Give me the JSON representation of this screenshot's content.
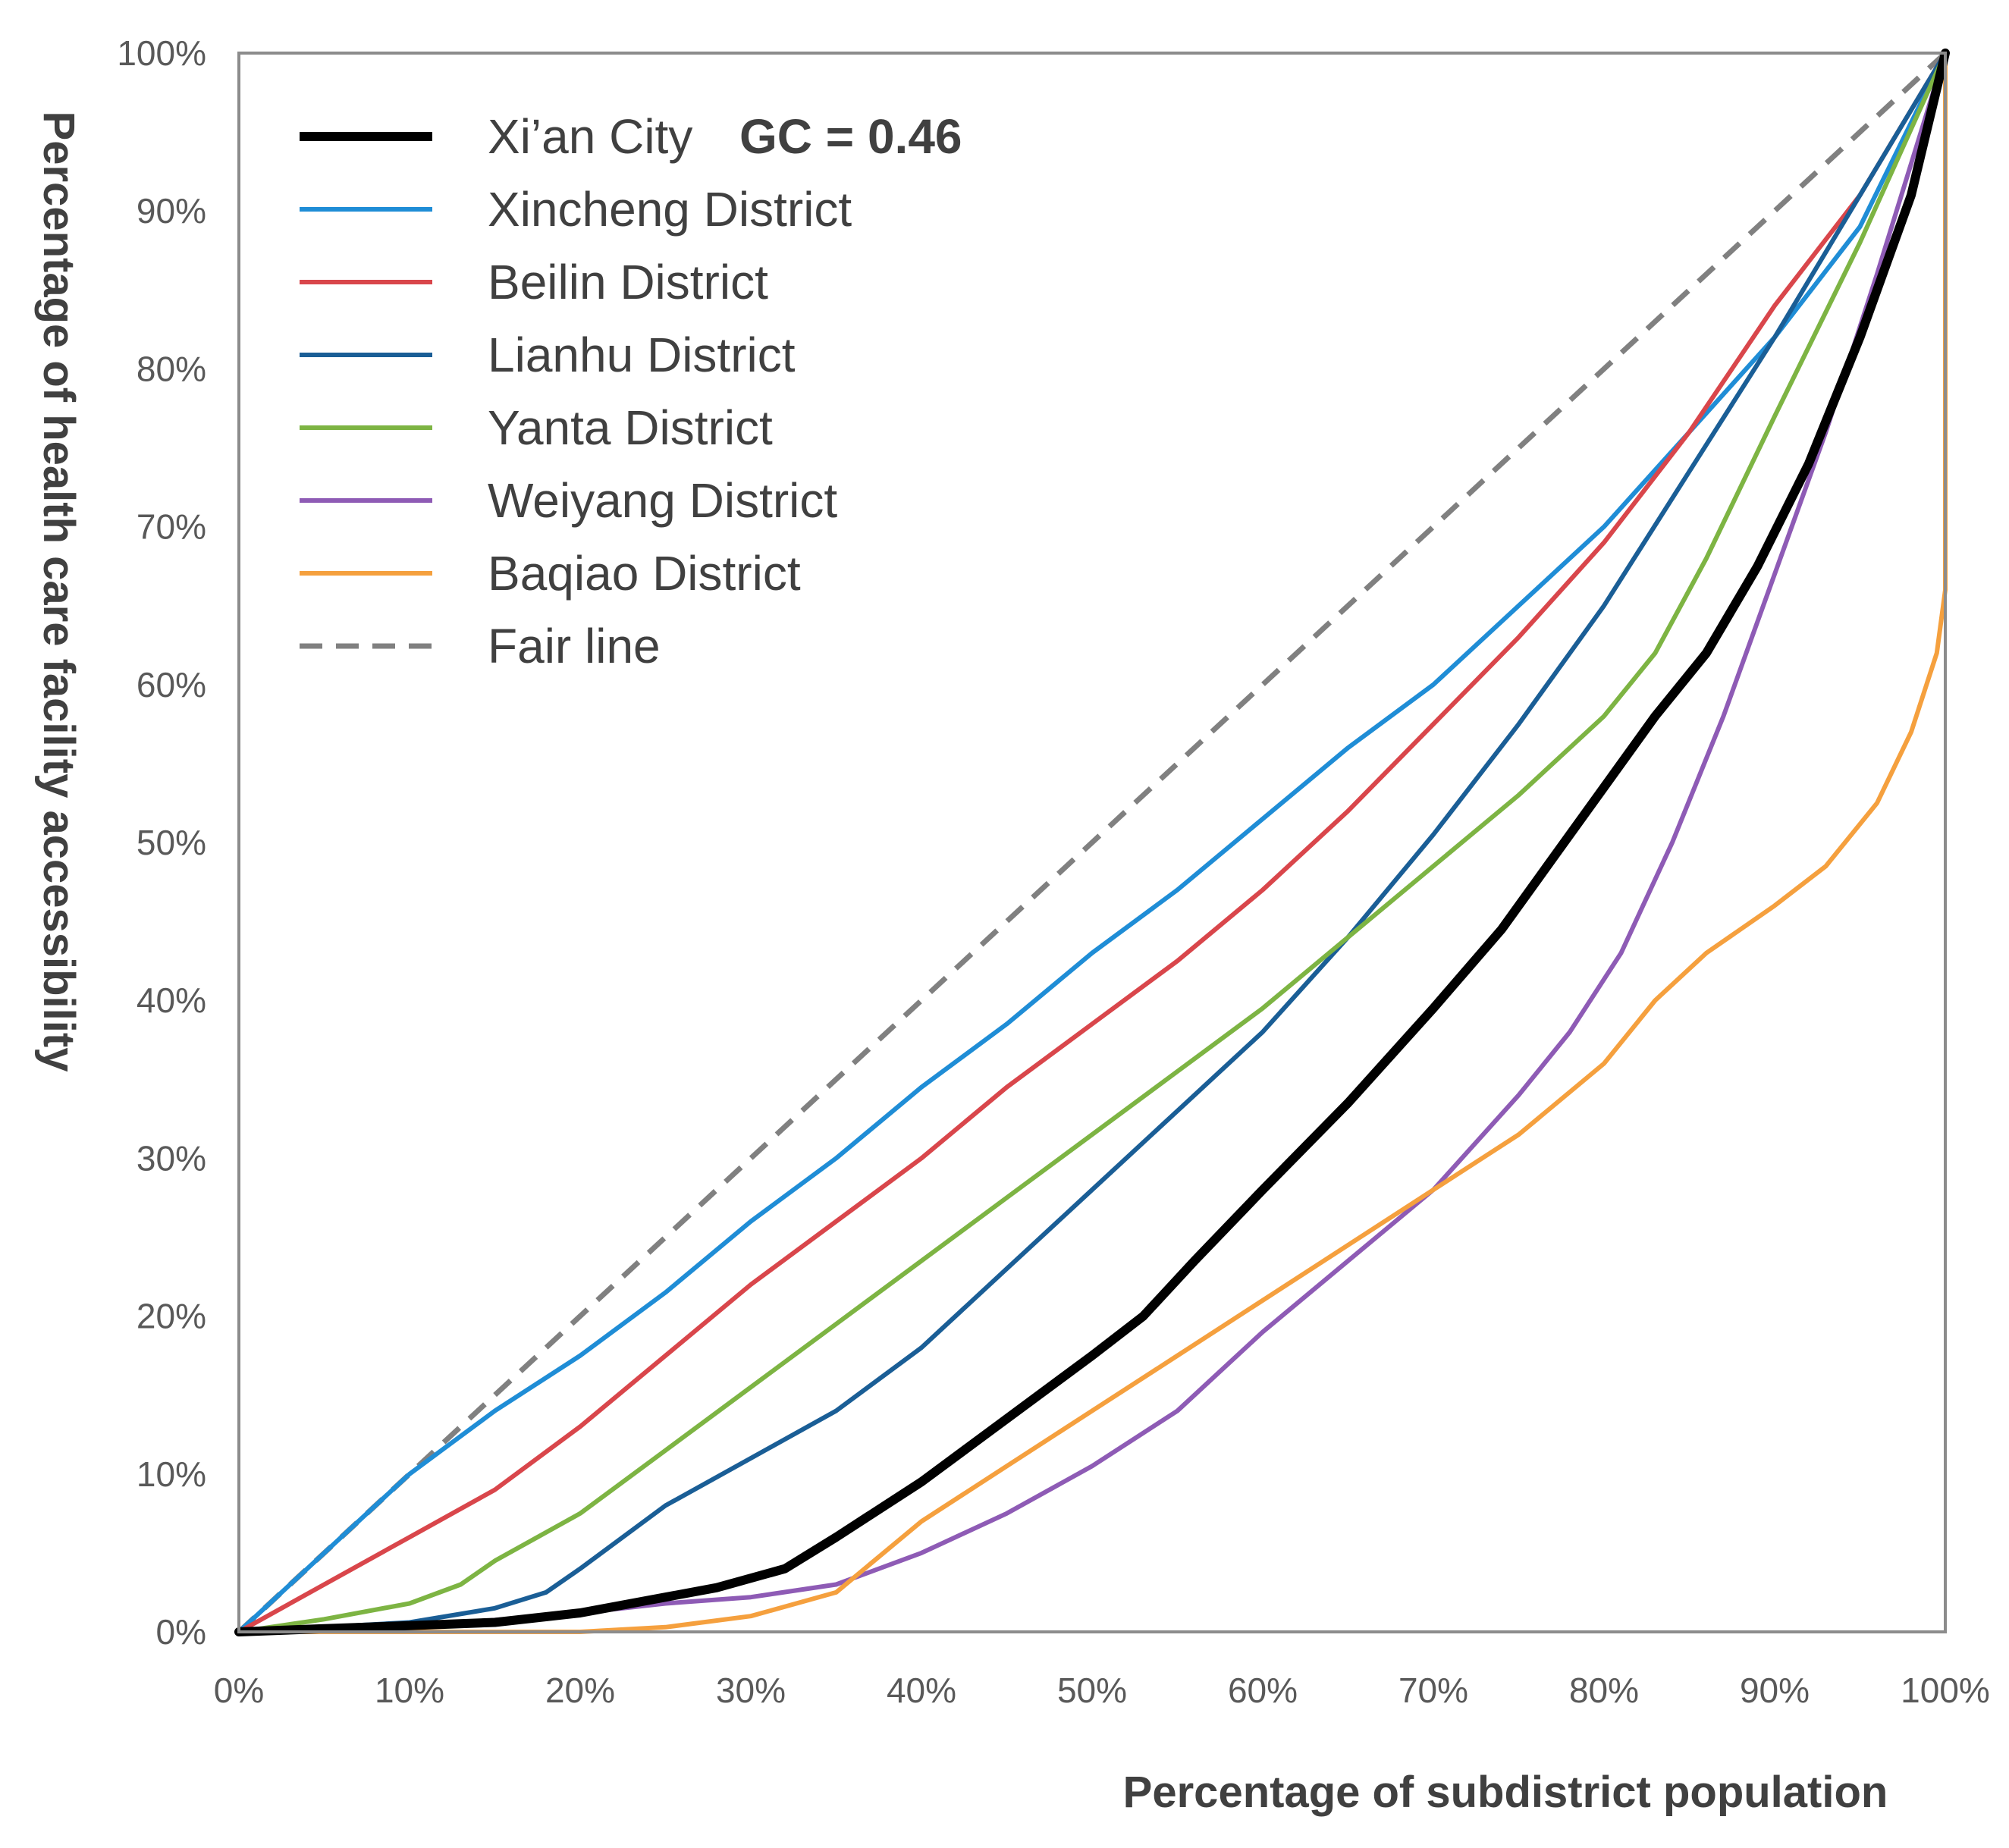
{
  "chart_data": {
    "type": "line",
    "title": "",
    "xlabel": "Percentage of subdistrict population",
    "ylabel": "Percentage of health care facility accessibility",
    "xlim": [
      0,
      100
    ],
    "ylim": [
      0,
      100
    ],
    "grid": false,
    "legend_position": "top-left",
    "x_ticks": [
      "0%",
      "10%",
      "20%",
      "30%",
      "40%",
      "50%",
      "60%",
      "70%",
      "80%",
      "90%",
      "100%"
    ],
    "y_ticks": [
      "0%",
      "10%",
      "20%",
      "30%",
      "40%",
      "50%",
      "60%",
      "70%",
      "80%",
      "90%",
      "100%"
    ],
    "gc_label": "GC = 0.46",
    "series": [
      {
        "name": "Xi’an City",
        "color": "#000000",
        "style": "solid-bold",
        "points": [
          [
            0,
            0
          ],
          [
            5,
            0.2
          ],
          [
            10,
            0.4
          ],
          [
            15,
            0.6
          ],
          [
            20,
            1.2
          ],
          [
            25,
            2.2
          ],
          [
            28,
            2.8
          ],
          [
            32,
            4
          ],
          [
            35,
            6
          ],
          [
            40,
            9.5
          ],
          [
            45,
            13.5
          ],
          [
            50,
            17.5
          ],
          [
            53,
            20
          ],
          [
            56,
            23.5
          ],
          [
            60,
            28
          ],
          [
            65,
            33.5
          ],
          [
            70,
            39.5
          ],
          [
            74,
            44.5
          ],
          [
            77,
            49
          ],
          [
            80,
            53.5
          ],
          [
            83,
            58
          ],
          [
            86,
            62
          ],
          [
            89,
            67.5
          ],
          [
            92,
            74
          ],
          [
            95,
            82
          ],
          [
            98,
            91
          ],
          [
            100,
            100
          ]
        ]
      },
      {
        "name": "Xincheng District",
        "color": "#1F8DD6",
        "style": "solid",
        "points": [
          [
            0,
            0
          ],
          [
            5,
            5
          ],
          [
            10,
            10
          ],
          [
            15,
            14
          ],
          [
            20,
            17.5
          ],
          [
            25,
            21.5
          ],
          [
            30,
            26
          ],
          [
            35,
            30
          ],
          [
            40,
            34.5
          ],
          [
            45,
            38.5
          ],
          [
            50,
            43
          ],
          [
            55,
            47
          ],
          [
            60,
            51.5
          ],
          [
            65,
            56
          ],
          [
            70,
            60
          ],
          [
            75,
            65
          ],
          [
            80,
            70
          ],
          [
            85,
            76
          ],
          [
            90,
            82
          ],
          [
            95,
            89
          ],
          [
            100,
            100
          ]
        ]
      },
      {
        "name": "Beilin District",
        "color": "#D9464B",
        "style": "solid",
        "points": [
          [
            0,
            0
          ],
          [
            5,
            3
          ],
          [
            10,
            6
          ],
          [
            15,
            9
          ],
          [
            20,
            13
          ],
          [
            25,
            17.5
          ],
          [
            30,
            22
          ],
          [
            35,
            26
          ],
          [
            40,
            30
          ],
          [
            45,
            34.5
          ],
          [
            50,
            38.5
          ],
          [
            55,
            42.5
          ],
          [
            60,
            47
          ],
          [
            65,
            52
          ],
          [
            70,
            57.5
          ],
          [
            75,
            63
          ],
          [
            80,
            69
          ],
          [
            85,
            76
          ],
          [
            90,
            84
          ],
          [
            95,
            91
          ],
          [
            100,
            100
          ]
        ]
      },
      {
        "name": "Lianhu District",
        "color": "#1A5E96",
        "style": "solid",
        "points": [
          [
            0,
            0
          ],
          [
            5,
            0.3
          ],
          [
            10,
            0.6
          ],
          [
            15,
            1.5
          ],
          [
            18,
            2.5
          ],
          [
            20,
            4
          ],
          [
            25,
            8
          ],
          [
            30,
            11
          ],
          [
            35,
            14
          ],
          [
            40,
            18
          ],
          [
            45,
            23
          ],
          [
            50,
            28
          ],
          [
            55,
            33
          ],
          [
            60,
            38
          ],
          [
            65,
            44
          ],
          [
            70,
            50.5
          ],
          [
            75,
            57.5
          ],
          [
            80,
            65
          ],
          [
            85,
            73.5
          ],
          [
            90,
            82
          ],
          [
            95,
            91
          ],
          [
            100,
            100
          ]
        ]
      },
      {
        "name": "Yanta District",
        "color": "#7DB443",
        "style": "solid",
        "points": [
          [
            0,
            0
          ],
          [
            5,
            0.8
          ],
          [
            10,
            1.8
          ],
          [
            13,
            3
          ],
          [
            15,
            4.5
          ],
          [
            20,
            7.5
          ],
          [
            25,
            11.5
          ],
          [
            30,
            15.5
          ],
          [
            35,
            19.5
          ],
          [
            40,
            23.5
          ],
          [
            45,
            27.5
          ],
          [
            50,
            31.5
          ],
          [
            55,
            35.5
          ],
          [
            60,
            39.5
          ],
          [
            65,
            44
          ],
          [
            70,
            48.5
          ],
          [
            75,
            53
          ],
          [
            80,
            58
          ],
          [
            83,
            62
          ],
          [
            86,
            68
          ],
          [
            90,
            77
          ],
          [
            95,
            88
          ],
          [
            100,
            100
          ]
        ]
      },
      {
        "name": "Weiyang District",
        "color": "#8E5BB5",
        "style": "solid",
        "points": [
          [
            0,
            0
          ],
          [
            10,
            0.3
          ],
          [
            20,
            1.2
          ],
          [
            25,
            1.8
          ],
          [
            30,
            2.2
          ],
          [
            35,
            3
          ],
          [
            40,
            5
          ],
          [
            45,
            7.5
          ],
          [
            50,
            10.5
          ],
          [
            55,
            14
          ],
          [
            60,
            19
          ],
          [
            65,
            23.5
          ],
          [
            70,
            28
          ],
          [
            75,
            34
          ],
          [
            78,
            38
          ],
          [
            81,
            43
          ],
          [
            84,
            50
          ],
          [
            87,
            58
          ],
          [
            90,
            67
          ],
          [
            93,
            76
          ],
          [
            96,
            86
          ],
          [
            100,
            100
          ]
        ]
      },
      {
        "name": "Baqiao District",
        "color": "#F5A03E",
        "style": "solid",
        "points": [
          [
            0,
            0
          ],
          [
            20,
            0
          ],
          [
            25,
            0.3
          ],
          [
            30,
            1
          ],
          [
            35,
            2.5
          ],
          [
            40,
            7
          ],
          [
            45,
            10.5
          ],
          [
            50,
            14
          ],
          [
            55,
            17.5
          ],
          [
            60,
            21
          ],
          [
            65,
            24.5
          ],
          [
            70,
            28
          ],
          [
            75,
            31.5
          ],
          [
            80,
            36
          ],
          [
            83,
            40
          ],
          [
            86,
            43
          ],
          [
            90,
            46
          ],
          [
            93,
            48.5
          ],
          [
            96,
            52.5
          ],
          [
            98,
            57
          ],
          [
            99.5,
            62
          ],
          [
            100,
            66
          ],
          [
            100,
            80
          ],
          [
            100,
            100
          ]
        ]
      },
      {
        "name": "Fair line",
        "color": "#808080",
        "style": "dashed",
        "points": [
          [
            0,
            0
          ],
          [
            100,
            100
          ]
        ]
      }
    ]
  }
}
